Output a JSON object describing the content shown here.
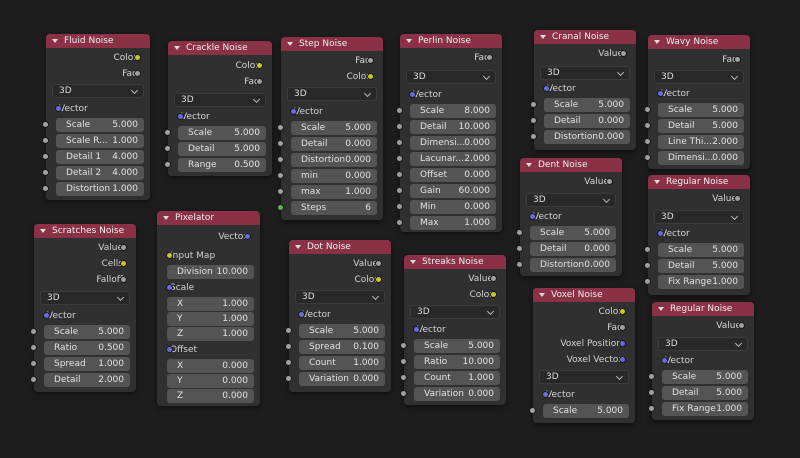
{
  "nodes": {
    "fluid": {
      "title": "Fluid Noise",
      "out": [
        "Color",
        "Fac"
      ],
      "dropdown": "3D",
      "vector": "Vector",
      "fields": [
        {
          "label": "Scale",
          "value": "5.000"
        },
        {
          "label": "Scale R...",
          "value": "1.000"
        },
        {
          "label": "Detail 1",
          "value": "4.000"
        },
        {
          "label": "Detail 2",
          "value": "4.000"
        },
        {
          "label": "Distortion",
          "value": "1.000"
        }
      ]
    },
    "crackle": {
      "title": "Crackle Noise",
      "out": [
        "Color",
        "Fac"
      ],
      "dropdown": "3D",
      "vector": "Vector",
      "fields": [
        {
          "label": "Scale",
          "value": "5.000"
        },
        {
          "label": "Detail",
          "value": "5.000"
        },
        {
          "label": "Range",
          "value": "0.500"
        }
      ]
    },
    "step": {
      "title": "Step Noise",
      "out": [
        "Fac",
        "Color"
      ],
      "dropdown": "3D",
      "vector": "Vector",
      "fields": [
        {
          "label": "Scale",
          "value": "5.000"
        },
        {
          "label": "Detail",
          "value": "0.000"
        },
        {
          "label": "Distortion",
          "value": "0.000"
        },
        {
          "label": "min",
          "value": "0.000"
        },
        {
          "label": "max",
          "value": "1.000"
        },
        {
          "label": "Steps",
          "value": "6"
        }
      ]
    },
    "perlin": {
      "title": "Perlin Noise",
      "out": [
        "Fac"
      ],
      "dropdown": "3D",
      "vector": "Vector",
      "fields": [
        {
          "label": "Scale",
          "value": "8.000"
        },
        {
          "label": "Detail",
          "value": "10.000"
        },
        {
          "label": "Dimensi...",
          "value": "0.000"
        },
        {
          "label": "Lacunar...",
          "value": "2.000"
        },
        {
          "label": "Offset",
          "value": "0.000"
        },
        {
          "label": "Gain",
          "value": "60.000"
        },
        {
          "label": "Min",
          "value": "0.000"
        },
        {
          "label": "Max",
          "value": "1.000"
        }
      ]
    },
    "cranal": {
      "title": "Cranal Noise",
      "out": [
        "Value"
      ],
      "dropdown": "3D",
      "vector": "Vector",
      "fields": [
        {
          "label": "Scale",
          "value": "5.000"
        },
        {
          "label": "Detail",
          "value": "0.000"
        },
        {
          "label": "Distortion",
          "value": "0.000"
        }
      ]
    },
    "wavy": {
      "title": "Wavy Noise",
      "out": [
        "Fac"
      ],
      "dropdown": "3D",
      "vector": "Vector",
      "fields": [
        {
          "label": "Scale",
          "value": "5.000"
        },
        {
          "label": "Detail",
          "value": "5.000"
        },
        {
          "label": "Line Thi...",
          "value": "2.000"
        },
        {
          "label": "Dimensi...",
          "value": "0.000"
        }
      ]
    },
    "dent": {
      "title": "Dent Noise",
      "out": [
        "Value"
      ],
      "dropdown": "3D",
      "vector": "Vector",
      "fields": [
        {
          "label": "Scale",
          "value": "5.000"
        },
        {
          "label": "Detail",
          "value": "0.000"
        },
        {
          "label": "Distortion",
          "value": "0.000"
        }
      ]
    },
    "regular1": {
      "title": "Regular Noise",
      "out": [
        "Value"
      ],
      "dropdown": "3D",
      "vector": "Vector",
      "fields": [
        {
          "label": "Scale",
          "value": "5.000"
        },
        {
          "label": "Detail",
          "value": "5.000"
        },
        {
          "label": "Fix Range",
          "value": "1.000"
        }
      ]
    },
    "scratches": {
      "title": "Scratches Noise",
      "out": [
        "Value",
        "Cells",
        "Falloff"
      ],
      "dropdown": "3D",
      "vector": "Vector",
      "fields": [
        {
          "label": "Scale",
          "value": "5.000"
        },
        {
          "label": "Ratio",
          "value": "0.500"
        },
        {
          "label": "Spread",
          "value": "1.000"
        },
        {
          "label": "Detail",
          "value": "2.000"
        }
      ]
    },
    "pixelator": {
      "title": "Pixelator",
      "out": [
        "Vector"
      ],
      "input_map": "Input Map",
      "division": {
        "label": "Division",
        "value": "10.000"
      },
      "scale_label": "Scale",
      "scale": [
        {
          "label": "X",
          "value": "1.000"
        },
        {
          "label": "Y",
          "value": "1.000"
        },
        {
          "label": "Z",
          "value": "1.000"
        }
      ],
      "offset_label": "Offset",
      "offset": [
        {
          "label": "X",
          "value": "0.000"
        },
        {
          "label": "Y",
          "value": "0.000"
        },
        {
          "label": "Z",
          "value": "0.000"
        }
      ]
    },
    "dot": {
      "title": "Dot Noise",
      "out": [
        "Value",
        "Color"
      ],
      "dropdown": "3D",
      "vector": "Vector",
      "fields": [
        {
          "label": "Scale",
          "value": "5.000"
        },
        {
          "label": "Spread",
          "value": "0.100"
        },
        {
          "label": "Count",
          "value": "1.000"
        },
        {
          "label": "Variation",
          "value": "0.000"
        }
      ]
    },
    "streaks": {
      "title": "Streaks Noise",
      "out": [
        "Value",
        "Color"
      ],
      "dropdown": "3D",
      "vector": "Vector",
      "fields": [
        {
          "label": "Scale",
          "value": "5.000"
        },
        {
          "label": "Ratio",
          "value": "10.000"
        },
        {
          "label": "Count",
          "value": "1.000"
        },
        {
          "label": "Variation",
          "value": "0.000"
        }
      ]
    },
    "voxel": {
      "title": "Voxel Noise",
      "out": [
        "Color",
        "Fac",
        "Voxel Position",
        "Voxel Vector"
      ],
      "dropdown": "3D",
      "vector": "Vector",
      "fields": [
        {
          "label": "Scale",
          "value": "5.000"
        }
      ]
    },
    "regular2": {
      "title": "Regular Noise",
      "out": [
        "Value"
      ],
      "dropdown": "3D",
      "vector": "Vector",
      "fields": [
        {
          "label": "Scale",
          "value": "5.000"
        },
        {
          "label": "Detail",
          "value": "5.000"
        },
        {
          "label": "Fix Range",
          "value": "1.000"
        }
      ]
    }
  },
  "colors": {
    "header": "#8a3146",
    "node_bg": "#303030",
    "canvas": "#1d1d1d",
    "field": "#545454",
    "socket_gray": "#a0a0a0",
    "socket_yellow": "#c7c72a",
    "socket_blue": "#6a6ae0",
    "socket_green": "#5cb44e"
  }
}
